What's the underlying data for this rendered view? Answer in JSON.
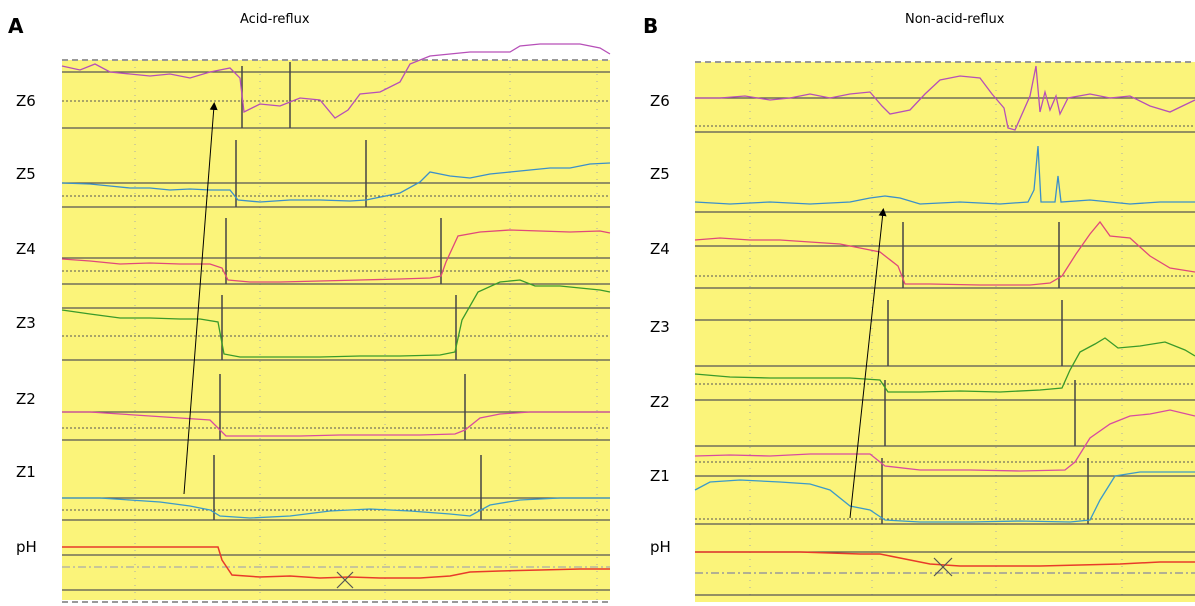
{
  "panels": [
    {
      "letter": "A",
      "title": "Acid-reflux"
    },
    {
      "letter": "B",
      "title": "Non-acid-reflux"
    }
  ],
  "channel_labels": [
    "Z6",
    "Z5",
    "Z4",
    "Z3",
    "Z2",
    "Z1",
    "pH"
  ],
  "colors": {
    "background": "#fbf47a",
    "z6": "#b64fb8",
    "z5": "#3b8fc9",
    "z4": "#e0487a",
    "z3": "#3a9a2a",
    "z2": "#d84ba0",
    "z1": "#3b9ac8",
    "ph": "#e83a2a",
    "baseline": "#555555"
  },
  "chart_data": [
    {
      "type": "line",
      "title": "Acid-reflux",
      "series": [
        "Z6",
        "Z5",
        "Z4",
        "Z3",
        "Z2",
        "Z1",
        "pH"
      ],
      "annotations": [
        "arrow from Z1 to Z6 (retrograde bolus movement)",
        "X marker on pH trace (pH drop)"
      ],
      "ph_drop": true
    },
    {
      "type": "line",
      "title": "Non-acid-reflux",
      "series": [
        "Z6",
        "Z5",
        "Z4",
        "Z3",
        "Z2",
        "Z1",
        "pH"
      ],
      "annotations": [
        "arrow from Z1 to Z5 (retrograde bolus movement)",
        "X marker on pH trace"
      ],
      "ph_drop": false
    }
  ]
}
